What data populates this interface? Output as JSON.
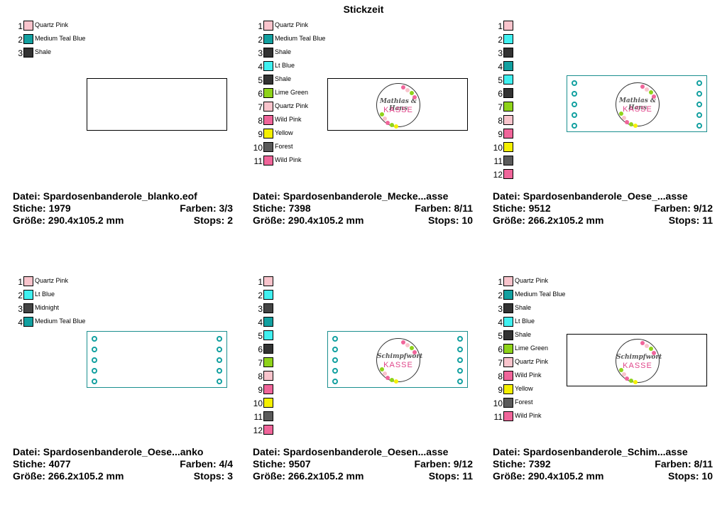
{
  "title": "Stickzeit",
  "panels": [
    {
      "file": "Datei: Spardosenbanderole_blanko.eof",
      "stitches": "Stiche: 1979",
      "colors_count": "Farben: 3/3",
      "size": "Größe: 290.4x105.2 mm",
      "stops": "Stops: 2",
      "colors": [
        {
          "n": "1",
          "name": "Quartz Pink",
          "hex": "#f9c4cc"
        },
        {
          "n": "2",
          "name": "Medium Teal Blue",
          "hex": "#12a0a0"
        },
        {
          "n": "3",
          "name": "Shale",
          "hex": "#333333"
        }
      ]
    },
    {
      "file": "Datei: Spardosenbanderole_Mecke...asse",
      "stitches": "Stiche: 7398",
      "colors_count": "Farben: 8/11",
      "size": "Größe: 290.4x105.2 mm",
      "stops": "Stops: 10",
      "script": "Mathias & Hans",
      "kasse": "KASSE",
      "colors": [
        {
          "n": "1",
          "name": "Quartz Pink",
          "hex": "#f9c4cc"
        },
        {
          "n": "2",
          "name": "Medium Teal Blue",
          "hex": "#12a0a0"
        },
        {
          "n": "3",
          "name": "Shale",
          "hex": "#333333"
        },
        {
          "n": "4",
          "name": "Lt Blue",
          "hex": "#40f0f0"
        },
        {
          "n": "5",
          "name": "Shale",
          "hex": "#333333"
        },
        {
          "n": "6",
          "name": "Lime Green",
          "hex": "#8fd31a"
        },
        {
          "n": "7",
          "name": "Quartz Pink",
          "hex": "#f9c4cc"
        },
        {
          "n": "8",
          "name": "Wild Pink",
          "hex": "#f0659a"
        },
        {
          "n": "9",
          "name": "Yellow",
          "hex": "#f5f000"
        },
        {
          "n": "10",
          "name": "Forest",
          "hex": "#5a5a5a"
        },
        {
          "n": "11",
          "name": "Wild Pink",
          "hex": "#f0659a"
        }
      ]
    },
    {
      "file": "Datei: Spardosenbanderole_Oese_...asse",
      "stitches": "Stiche: 9512",
      "colors_count": "Farben: 9/12",
      "size": "Größe: 266.2x105.2 mm",
      "stops": "Stops: 11",
      "script": "Mathias & Hans",
      "kasse": "KASSE",
      "colors": [
        {
          "n": "1",
          "name": "",
          "hex": "#f9c4cc"
        },
        {
          "n": "2",
          "name": "",
          "hex": "#40f0f0"
        },
        {
          "n": "3",
          "name": "",
          "hex": "#333333"
        },
        {
          "n": "4",
          "name": "",
          "hex": "#12a0a0"
        },
        {
          "n": "5",
          "name": "",
          "hex": "#40f0f0"
        },
        {
          "n": "6",
          "name": "",
          "hex": "#333333"
        },
        {
          "n": "7",
          "name": "",
          "hex": "#8fd31a"
        },
        {
          "n": "8",
          "name": "",
          "hex": "#f9c4cc"
        },
        {
          "n": "9",
          "name": "",
          "hex": "#f0659a"
        },
        {
          "n": "10",
          "name": "",
          "hex": "#f5f000"
        },
        {
          "n": "11",
          "name": "",
          "hex": "#5a5a5a"
        },
        {
          "n": "12",
          "name": "",
          "hex": "#f0659a"
        }
      ]
    },
    {
      "file": "Datei: Spardosenbanderole_Oese...anko",
      "stitches": "Stiche: 4077",
      "colors_count": "Farben: 4/4",
      "size": "Größe: 266.2x105.2 mm",
      "stops": "Stops: 3",
      "colors": [
        {
          "n": "1",
          "name": "Quartz Pink",
          "hex": "#f9c4cc"
        },
        {
          "n": "2",
          "name": "Lt Blue",
          "hex": "#40f0f0"
        },
        {
          "n": "3",
          "name": "Midnight",
          "hex": "#444444"
        },
        {
          "n": "4",
          "name": "Medium Teal Blue",
          "hex": "#12a0a0"
        }
      ]
    },
    {
      "file": "Datei: Spardosenbanderole_Oesen...asse",
      "stitches": "Stiche: 9507",
      "colors_count": "Farben: 9/12",
      "size": "Größe: 266.2x105.2 mm",
      "stops": "Stops: 11",
      "script": "Schimpfwort",
      "kasse": "KASSE",
      "colors": [
        {
          "n": "1",
          "name": "",
          "hex": "#f9c4cc"
        },
        {
          "n": "2",
          "name": "",
          "hex": "#40f0f0"
        },
        {
          "n": "3",
          "name": "",
          "hex": "#444444"
        },
        {
          "n": "4",
          "name": "",
          "hex": "#12a0a0"
        },
        {
          "n": "5",
          "name": "",
          "hex": "#40f0f0"
        },
        {
          "n": "6",
          "name": "",
          "hex": "#333333"
        },
        {
          "n": "7",
          "name": "",
          "hex": "#8fd31a"
        },
        {
          "n": "8",
          "name": "",
          "hex": "#f9c4cc"
        },
        {
          "n": "9",
          "name": "",
          "hex": "#f0659a"
        },
        {
          "n": "10",
          "name": "",
          "hex": "#f5f000"
        },
        {
          "n": "11",
          "name": "",
          "hex": "#5a5a5a"
        },
        {
          "n": "12",
          "name": "",
          "hex": "#f0659a"
        }
      ]
    },
    {
      "file": "Datei: Spardosenbanderole_Schim...asse",
      "stitches": "Stiche: 7392",
      "colors_count": "Farben: 8/11",
      "size": "Größe: 290.4x105.2 mm",
      "stops": "Stops: 10",
      "script": "Schimpfwort",
      "kasse": "KASSE",
      "colors": [
        {
          "n": "1",
          "name": "Quartz Pink",
          "hex": "#f9c4cc"
        },
        {
          "n": "2",
          "name": "Medium Teal Blue",
          "hex": "#12a0a0"
        },
        {
          "n": "3",
          "name": "Shale",
          "hex": "#333333"
        },
        {
          "n": "4",
          "name": "Lt Blue",
          "hex": "#40f0f0"
        },
        {
          "n": "5",
          "name": "Shale",
          "hex": "#333333"
        },
        {
          "n": "6",
          "name": "Lime Green",
          "hex": "#8fd31a"
        },
        {
          "n": "7",
          "name": "Quartz Pink",
          "hex": "#f9c4cc"
        },
        {
          "n": "8",
          "name": "Wild Pink",
          "hex": "#f0659a"
        },
        {
          "n": "9",
          "name": "Yellow",
          "hex": "#f5f000"
        },
        {
          "n": "10",
          "name": "Forest",
          "hex": "#5a5a5a"
        },
        {
          "n": "11",
          "name": "Wild Pink",
          "hex": "#f0659a"
        }
      ]
    }
  ]
}
